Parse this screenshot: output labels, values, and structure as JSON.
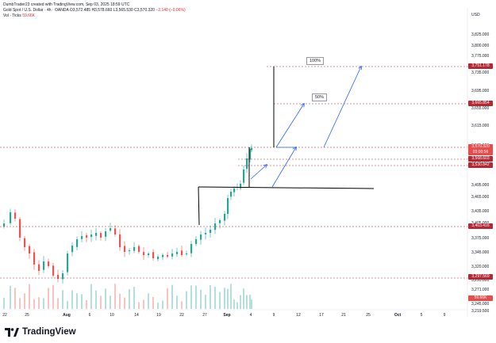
{
  "header": {
    "credit": "DumbTrader23 created with TradingView.com, Sep 03, 2025 18:59 UTC",
    "symbol": "Gold Spot / U.S. Dollar · 4h · OANDA",
    "ohlc": "O3,572.485 H3,578.660 L3,565.530 C3,570.320",
    "change": "−2.140 (−0.06%)",
    "vol_label": "Vol · Ticks",
    "vol_value": "59.66K"
  },
  "axis": {
    "currency": "USD",
    "price_ticks": [
      "3,825.000",
      "3,800.000",
      "3,775.000",
      "3,735.000",
      "3,695.000",
      "3,655.000",
      "3,615.000",
      "3,575.000",
      "3,535.000",
      "3,495.000",
      "3,465.000",
      "3,435.000",
      "3,405.000",
      "3,375.000",
      "3,345.000",
      "3,320.000",
      "3,295.000",
      "3,271.000",
      "3,245.000",
      "3,219.500"
    ],
    "time_ticks": [
      "22",
      "25",
      "Aug",
      "6",
      "10",
      "14",
      "19",
      "22",
      "27",
      "Sep",
      "4",
      "9",
      "12",
      "17",
      "21",
      "25",
      "Oct",
      "5",
      "9"
    ]
  },
  "price_tags": [
    {
      "label": "3,751.178",
      "color": "#b22833"
    },
    {
      "label": "3,665.854",
      "color": "#b22833"
    },
    {
      "label": "3,570.320",
      "label2": "03:00:56",
      "color": "#e74c4c"
    },
    {
      "label": "3,568.603",
      "color": "#b22833"
    },
    {
      "label": "3,530.842",
      "color": "#b22833"
    },
    {
      "label": "3,403.416",
      "color": "#b22833"
    },
    {
      "label": "3,297.569",
      "color": "#b22833"
    },
    {
      "label": "59.66K",
      "color": "#e74c4c"
    }
  ],
  "annotations": {
    "pct_100": "100%",
    "pct_50": "50%"
  },
  "brand": {
    "name": "TradingView",
    "logo_icon": "tradingview-logo-icon"
  }
}
